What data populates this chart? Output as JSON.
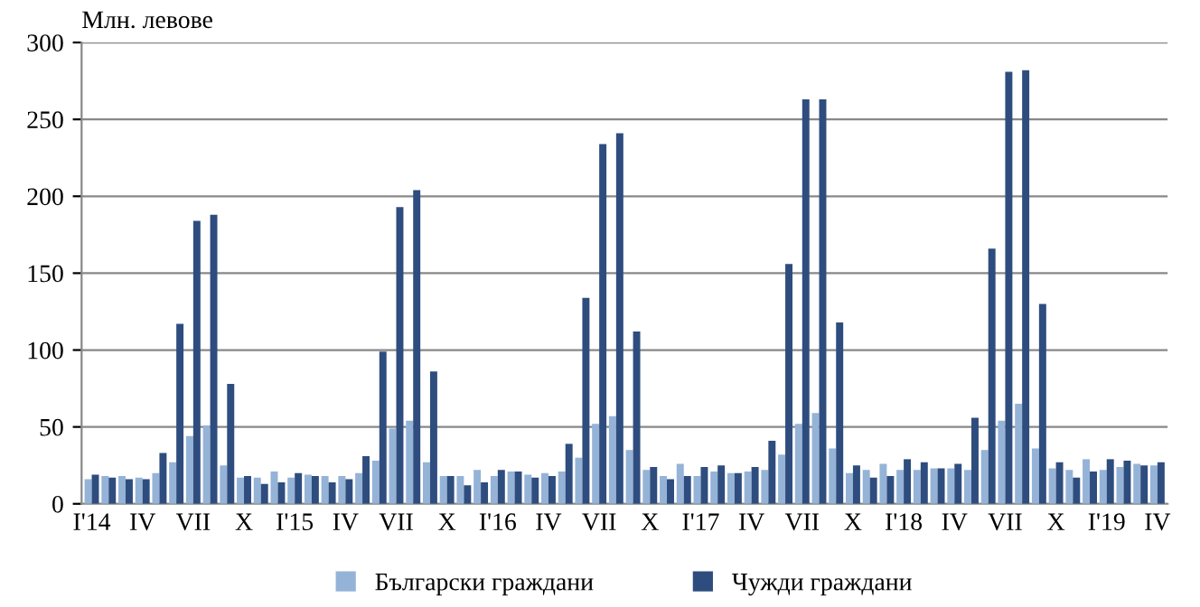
{
  "chart_data": {
    "type": "bar",
    "ylabel": "Млн. левове",
    "categories": [
      "I'14",
      null,
      null,
      "IV",
      null,
      null,
      "VII",
      null,
      null,
      "X",
      null,
      null,
      "I'15",
      null,
      null,
      "IV",
      null,
      null,
      "VII",
      null,
      null,
      "X",
      null,
      null,
      "I'16",
      null,
      null,
      "IV",
      null,
      null,
      "VII",
      null,
      null,
      "X",
      null,
      null,
      "I'17",
      null,
      null,
      "IV",
      null,
      null,
      "VII",
      null,
      null,
      "X",
      null,
      null,
      "I'18",
      null,
      null,
      "IV",
      null,
      null,
      "VII",
      null,
      null,
      "X",
      null,
      null,
      "I'19",
      null,
      null,
      "IV"
    ],
    "series": [
      {
        "name": "Български граждани",
        "color": "#95b3d7",
        "values": [
          16,
          18,
          18,
          17,
          20,
          27,
          44,
          51,
          25,
          17,
          17,
          21,
          17,
          19,
          18,
          18,
          20,
          28,
          49,
          54,
          27,
          18,
          18,
          22,
          18,
          21,
          19,
          20,
          21,
          30,
          52,
          57,
          35,
          22,
          18,
          26,
          18,
          21,
          20,
          21,
          22,
          32,
          52,
          59,
          36,
          20,
          22,
          26,
          22,
          22,
          23,
          23,
          22,
          35,
          54,
          65,
          36,
          23,
          22,
          29,
          22,
          24,
          26,
          25
        ]
      },
      {
        "name": "Чужди граждани",
        "color": "#2e4d7e",
        "values": [
          19,
          17,
          16,
          16,
          33,
          117,
          184,
          188,
          78,
          18,
          13,
          14,
          20,
          18,
          14,
          16,
          31,
          99,
          193,
          204,
          86,
          18,
          12,
          14,
          22,
          21,
          17,
          18,
          39,
          134,
          234,
          241,
          112,
          24,
          16,
          18,
          24,
          25,
          20,
          24,
          41,
          156,
          263,
          263,
          118,
          25,
          17,
          18,
          29,
          27,
          23,
          26,
          56,
          166,
          281,
          282,
          130,
          27,
          17,
          21,
          29,
          28,
          25,
          27
        ]
      }
    ],
    "ylim": [
      0,
      300
    ],
    "yticks": [
      0,
      50,
      100,
      150,
      200,
      250,
      300
    ],
    "grid": "y",
    "legend": "bottom"
  }
}
